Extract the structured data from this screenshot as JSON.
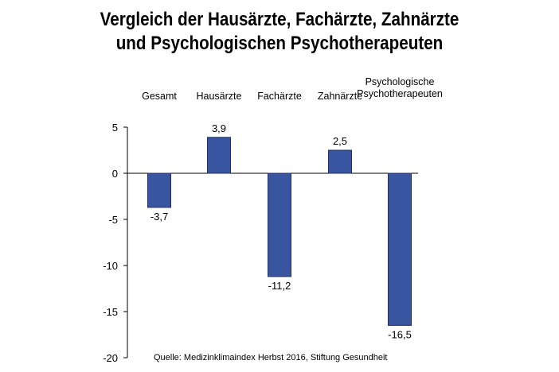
{
  "chart_data": {
    "type": "bar",
    "title_lines": [
      "Vergleich der Hausärzte, Fachärzte, Zahnärzte",
      "und Psychologischen Psychotherapeuten"
    ],
    "categories": [
      [
        "Gesamt"
      ],
      [
        "Hausärzte"
      ],
      [
        "Fachärzte"
      ],
      [
        "Zahnärzte"
      ],
      [
        "Psychologische",
        "Psychotherapeuten"
      ]
    ],
    "values": [
      -3.7,
      3.9,
      -11.2,
      2.5,
      -16.5
    ],
    "value_labels": [
      "-3,7",
      "3,9",
      "-11,2",
      "2,5",
      "-16,5"
    ],
    "ylim": [
      -20,
      5
    ],
    "yticks": [
      5,
      0,
      -5,
      -10,
      -15,
      -20
    ],
    "xlabel": "",
    "ylabel": "",
    "grid": false,
    "legend": "none",
    "bar_color": "#3a55a0",
    "source": "Quelle: Medizinklimaindex Herbst 2016, Stiftung Gesundheit"
  }
}
